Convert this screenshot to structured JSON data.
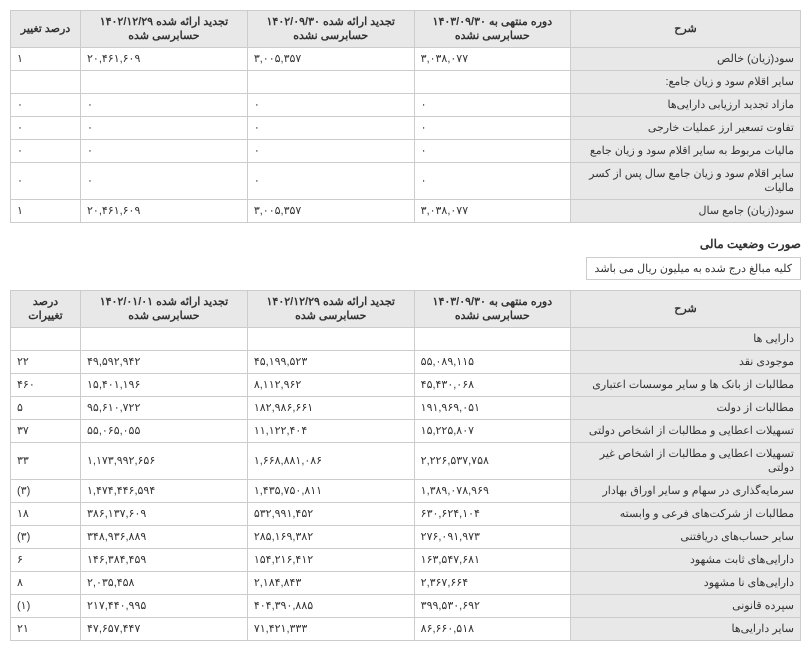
{
  "table1": {
    "headers": {
      "desc": "شرح",
      "col1": "دوره منتهی به ۱۴۰۳/۰۹/۳۰\nحسابرسی نشده",
      "col2": "تجدید ارائه شده ۱۴۰۲/۰۹/۳۰\nحسابرسی نشده",
      "col3": "تجدید ارائه شده ۱۴۰۲/۱۲/۲۹\nحسابرسی شده",
      "pct": "درصد تغییر"
    },
    "rows": [
      {
        "desc": "سود(زیان) خالص",
        "c1": "۳,۰۳۸,۰۷۷",
        "c2": "۳,۰۰۵,۳۵۷",
        "c3": "۲۰,۴۶۱,۶۰۹",
        "pct": "۱"
      },
      {
        "desc": "سایر اقلام سود و زیان جامع:",
        "c1": "",
        "c2": "",
        "c3": "",
        "pct": ""
      },
      {
        "desc": "مازاد تجدید ارزیابی دارایی‌ها",
        "c1": "۰",
        "c2": "۰",
        "c3": "۰",
        "pct": "۰"
      },
      {
        "desc": "تفاوت تسعیر ارز عملیات خارجی",
        "c1": "۰",
        "c2": "۰",
        "c3": "۰",
        "pct": "۰"
      },
      {
        "desc": "مالیات مربوط به سایر اقلام سود و زیان جامع",
        "c1": "۰",
        "c2": "۰",
        "c3": "۰",
        "pct": "۰"
      },
      {
        "desc": "سایر اقلام سود و زیان جامع سال پس از کسر مالیات",
        "c1": "۰",
        "c2": "۰",
        "c3": "۰",
        "pct": "۰"
      },
      {
        "desc": "سود(زیان) جامع سال",
        "c1": "۳,۰۳۸,۰۷۷",
        "c2": "۳,۰۰۵,۳۵۷",
        "c3": "۲۰,۴۶۱,۶۰۹",
        "pct": "۱"
      }
    ]
  },
  "section_title": "صورت وضعیت مالی",
  "note": "کلیه مبالغ درج شده به میلیون ریال می باشد",
  "table2": {
    "headers": {
      "desc": "شرح",
      "col1": "دوره منتهی به ۱۴۰۳/۰۹/۳۰\nحسابرسی نشده",
      "col2": "تجدید ارائه شده ۱۴۰۲/۱۲/۲۹\nحسابرسی شده",
      "col3": "تجدید ارائه شده ۱۴۰۲/۰۱/۰۱\nحسابرسی شده",
      "pct": "درصد تغییرات"
    },
    "rows": [
      {
        "desc": "دارایی ها",
        "c1": "",
        "c2": "",
        "c3": "",
        "pct": ""
      },
      {
        "desc": "موجودی نقد",
        "c1": "۵۵,۰۸۹,۱۱۵",
        "c2": "۴۵,۱۹۹,۵۲۳",
        "c3": "۴۹,۵۹۲,۹۴۲",
        "pct": "۲۲"
      },
      {
        "desc": "مطالبات از بانک ها و سایر موسسات اعتباری",
        "c1": "۴۵,۴۳۰,۰۶۸",
        "c2": "۸,۱۱۲,۹۶۲",
        "c3": "۱۵,۴۰۱,۱۹۶",
        "pct": "۴۶۰"
      },
      {
        "desc": "مطالبات از دولت",
        "c1": "۱۹۱,۹۶۹,۰۵۱",
        "c2": "۱۸۲,۹۸۶,۶۶۱",
        "c3": "۹۵,۶۱۰,۷۲۲",
        "pct": "۵"
      },
      {
        "desc": "تسهیلات اعطایی و مطالبات از اشخاص دولتی",
        "c1": "۱۵,۲۲۵,۸۰۷",
        "c2": "۱۱,۱۲۲,۴۰۴",
        "c3": "۵۵,۰۶۵,۰۵۵",
        "pct": "۳۷"
      },
      {
        "desc": "تسهیلات اعطایی و مطالبات از اشخاص غیر دولتی",
        "c1": "۲,۲۲۶,۵۳۷,۷۵۸",
        "c2": "۱,۶۶۸,۸۸۱,۰۸۶",
        "c3": "۱,۱۷۳,۹۹۲,۶۵۶",
        "pct": "۳۳"
      },
      {
        "desc": "سرمایه‌گذاری در سهام و سایر اوراق بهادار",
        "c1": "۱,۳۸۹,۰۷۸,۹۶۹",
        "c2": "۱,۴۳۵,۷۵۰,۸۱۱",
        "c3": "۱,۴۷۴,۴۴۶,۵۹۴",
        "pct": "(۳)"
      },
      {
        "desc": "مطالبات از شرکت‌های فرعی و وابسته",
        "c1": "۶۳۰,۶۲۴,۱۰۴",
        "c2": "۵۳۲,۹۹۱,۴۵۲",
        "c3": "۳۸۶,۱۳۷,۶۰۹",
        "pct": "۱۸"
      },
      {
        "desc": "سایر حساب‌های دریافتنی",
        "c1": "۲۷۶,۰۹۱,۹۷۳",
        "c2": "۲۸۵,۱۶۹,۳۸۲",
        "c3": "۳۴۸,۹۳۶,۸۸۹",
        "pct": "(۳)"
      },
      {
        "desc": "دارایی‌های ثابت مشهود",
        "c1": "۱۶۳,۵۴۷,۶۸۱",
        "c2": "۱۵۴,۲۱۶,۴۱۲",
        "c3": "۱۴۶,۳۸۴,۴۵۹",
        "pct": "۶"
      },
      {
        "desc": "دارایی‌های نا مشهود",
        "c1": "۲,۳۶۷,۶۶۴",
        "c2": "۲,۱۸۴,۸۴۳",
        "c3": "۲,۰۳۵,۴۵۸",
        "pct": "۸"
      },
      {
        "desc": "سپرده قانونی",
        "c1": "۳۹۹,۵۳۰,۶۹۲",
        "c2": "۴۰۴,۳۹۰,۸۸۵",
        "c3": "۲۱۷,۴۴۰,۹۹۵",
        "pct": "(۱)"
      },
      {
        "desc": "سایر دارایی‌ها",
        "c1": "۸۶,۶۶۰,۵۱۸",
        "c2": "۷۱,۴۲۱,۳۳۳",
        "c3": "۴۷,۶۵۷,۴۴۷",
        "pct": "۲۱"
      }
    ]
  }
}
